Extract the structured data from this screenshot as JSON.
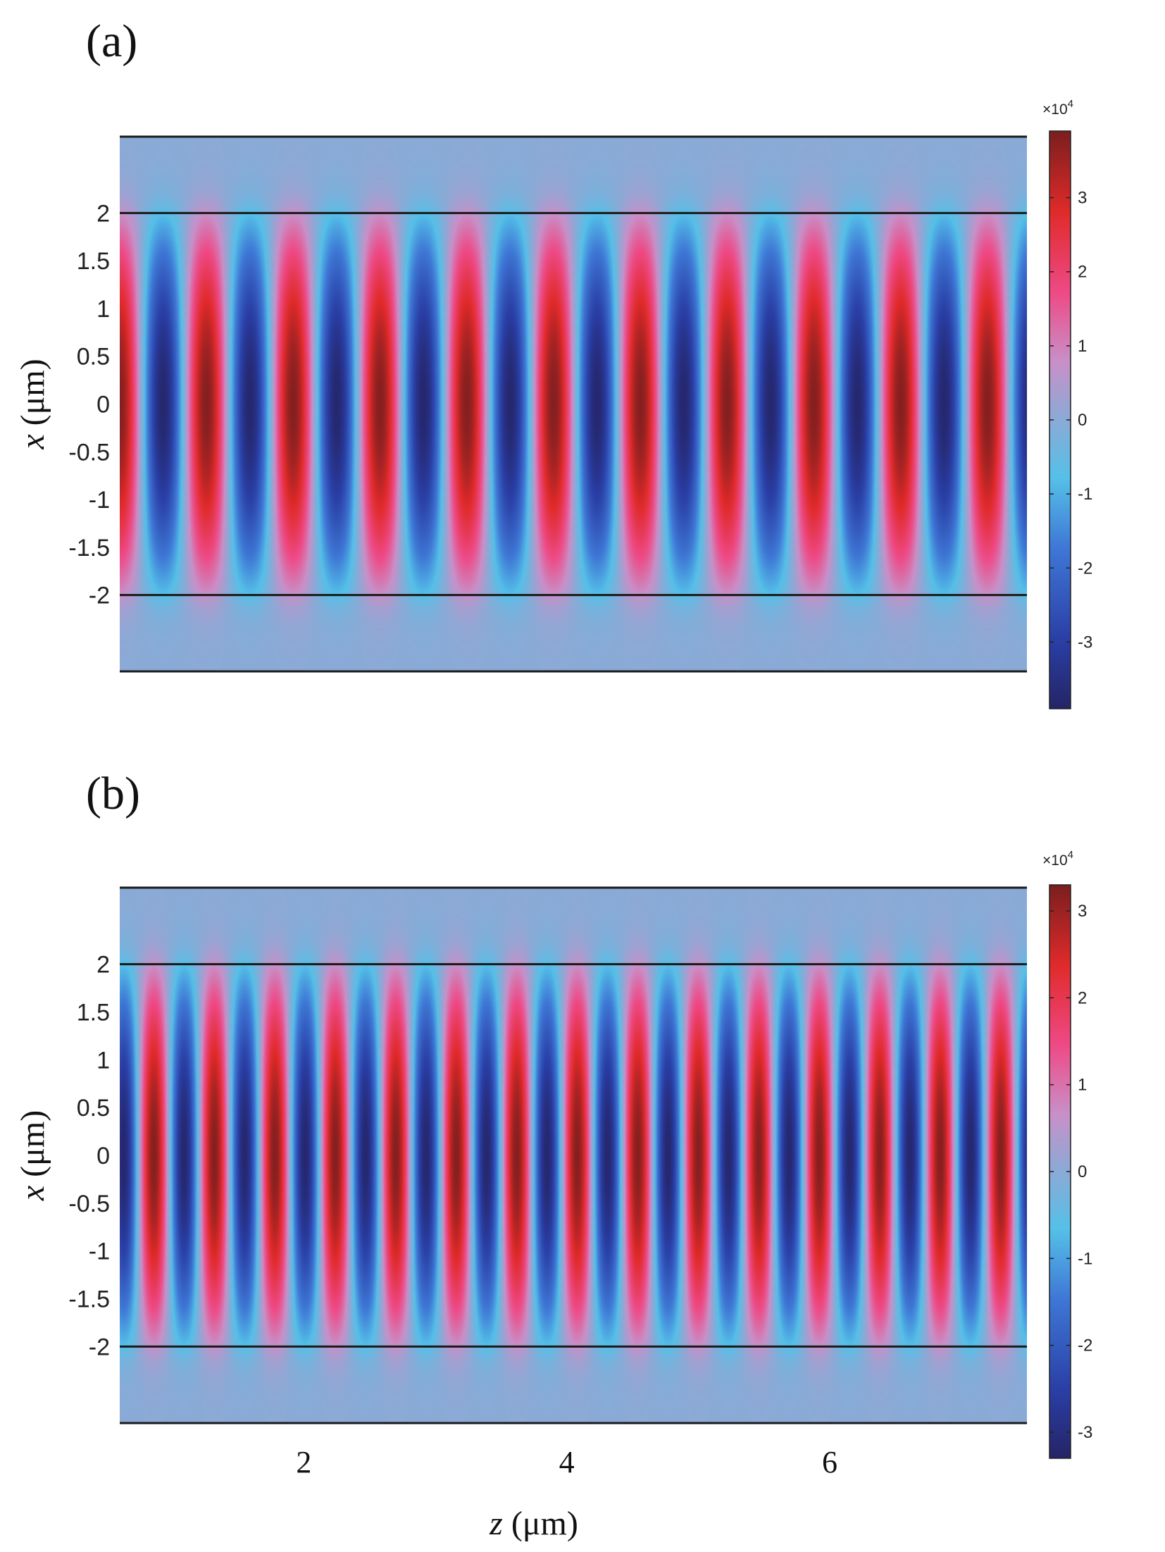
{
  "colors": {
    "background_field": "#8aaad6",
    "boundary_lines": "#1a1a1a",
    "colormap": [
      "#252466",
      "#2a3fa6",
      "#3f78d6",
      "#55c0e8",
      "#8aaad6",
      "#c890c8",
      "#ee4a86",
      "#e02a2a",
      "#7a1e1e"
    ]
  },
  "xlabel": {
    "var": "z",
    "unit": " (μm)"
  },
  "xticks": [
    "2",
    "4",
    "6"
  ],
  "ylabel": {
    "var": "x",
    "unit": " (μm)"
  },
  "chart_data": [
    {
      "type": "heatmap",
      "panel": "(a)",
      "description_of_field": "standing-wave field confined between x = -2 and x = 2 µm",
      "xlim": [
        0.6,
        7.5
      ],
      "ylim": [
        -2.8,
        2.8
      ],
      "yticks": [
        "2",
        "1.5",
        "1",
        "0.5",
        "0",
        "-0.5",
        "-1",
        "-1.5",
        "-2"
      ],
      "boundary_lines_x": [
        2.8,
        2,
        -2,
        -2.8
      ],
      "field_period_um": 0.66,
      "field_phase_um": 0.6,
      "colorbar": {
        "multiplier": "×10",
        "exponent": "4",
        "ticks": [
          "3",
          "2",
          "1",
          "0",
          "-1",
          "-2",
          "-3"
        ],
        "range": [
          -3.9,
          3.9
        ]
      }
    },
    {
      "type": "heatmap",
      "panel": "(b)",
      "description_of_field": "standing-wave field confined between x = -2 and x = 2 µm",
      "xlim": [
        0.6,
        7.5
      ],
      "ylim": [
        -2.8,
        2.8
      ],
      "yticks": [
        "2",
        "1.5",
        "1",
        "0.5",
        "0",
        "-0.5",
        "-1",
        "-1.5",
        "-2"
      ],
      "boundary_lines_x": [
        2.8,
        2,
        -2,
        -2.8
      ],
      "field_period_um": 0.46,
      "field_phase_um": 0.86,
      "colorbar": {
        "multiplier": "×10",
        "exponent": "4",
        "ticks": [
          "3",
          "2",
          "1",
          "0",
          "-1",
          "-2",
          "-3"
        ],
        "range": [
          -3.3,
          3.3
        ]
      }
    }
  ]
}
